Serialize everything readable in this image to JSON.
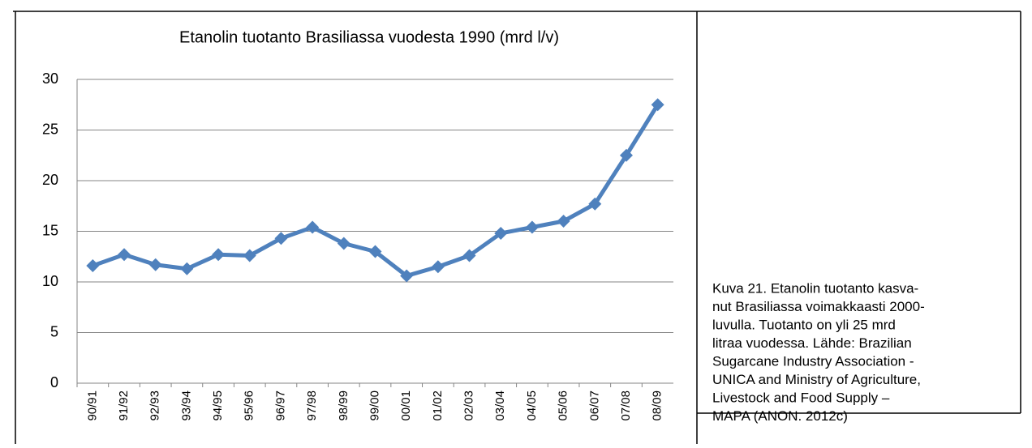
{
  "chart_data": {
    "type": "line",
    "title": "Etanolin tuotanto Brasiliassa vuodesta 1990 (mrd l/v)",
    "categories": [
      "90/91",
      "91/92",
      "92/93",
      "93/94",
      "94/95",
      "95/96",
      "96/97",
      "97/98",
      "98/99",
      "99/00",
      "00/01",
      "01/02",
      "02/03",
      "03/04",
      "04/05",
      "05/06",
      "06/07",
      "07/08",
      "08/09"
    ],
    "values": [
      11.6,
      12.7,
      11.7,
      11.3,
      12.7,
      12.6,
      14.3,
      15.4,
      13.8,
      13.0,
      10.6,
      11.5,
      12.6,
      14.8,
      15.4,
      16.0,
      17.7,
      22.5,
      27.5
    ],
    "color": "#4f81bd",
    "ylim": [
      0,
      30
    ],
    "yticks": [
      0,
      5,
      10,
      15,
      20,
      25,
      30
    ],
    "grid": true
  },
  "caption": {
    "lines": [
      "Kuva 21. Etanolin tuotanto kasva-",
      "nut Brasiliassa voimakkaasti 2000-",
      "luvulla. Tuotanto on yli 25 mrd",
      "litraa vuodessa. Lähde: Brazilian",
      "Sugarcane Industry Association -",
      "UNICA and Ministry of Agriculture,",
      "Livestock and Food Supply –",
      "MAPA (ANON. 2012c)"
    ]
  }
}
